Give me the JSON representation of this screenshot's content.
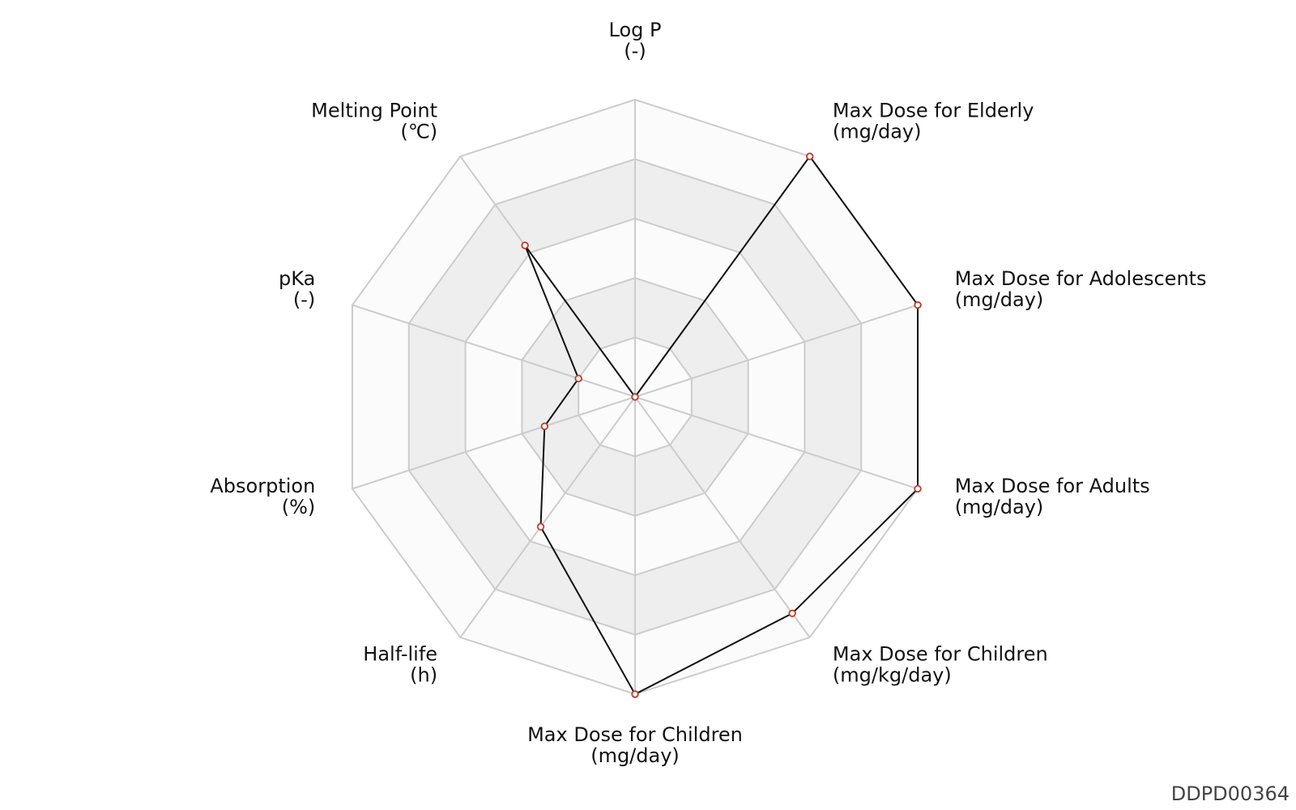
{
  "chart_data": {
    "type": "radar",
    "axes": [
      {
        "name": "Log P",
        "unit": "(-)",
        "value": 0.0
      },
      {
        "name": "Max Dose for Elderly",
        "unit": "(mg/day)",
        "value": 1.0
      },
      {
        "name": "Max Dose for Adolescents",
        "unit": "(mg/day)",
        "value": 1.0
      },
      {
        "name": "Max Dose for Adults",
        "unit": "(mg/day)",
        "value": 1.0
      },
      {
        "name": "Max Dose for Children",
        "unit": "(mg/kg/day)",
        "value": 0.9
      },
      {
        "name": "Max Dose for Children",
        "unit": "(mg/day)",
        "value": 1.0
      },
      {
        "name": "Half-life",
        "unit": "(h)",
        "value": 0.54
      },
      {
        "name": "Absorption",
        "unit": "(%)",
        "value": 0.32
      },
      {
        "name": "pKa",
        "unit": "(-)",
        "value": 0.2
      },
      {
        "name": "Melting Point",
        "unit": "(℃)",
        "value": 0.63
      }
    ],
    "rings": 5,
    "range": [
      0,
      1
    ],
    "colors": {
      "line": "#111111",
      "marker_edge": "#c0392b",
      "marker_fill": "#ffffff",
      "grid": "#cccccc",
      "band_light": "#fbfbfb",
      "band_dark": "#eeeeee"
    }
  },
  "footer": {
    "id": "DDPD00364"
  }
}
